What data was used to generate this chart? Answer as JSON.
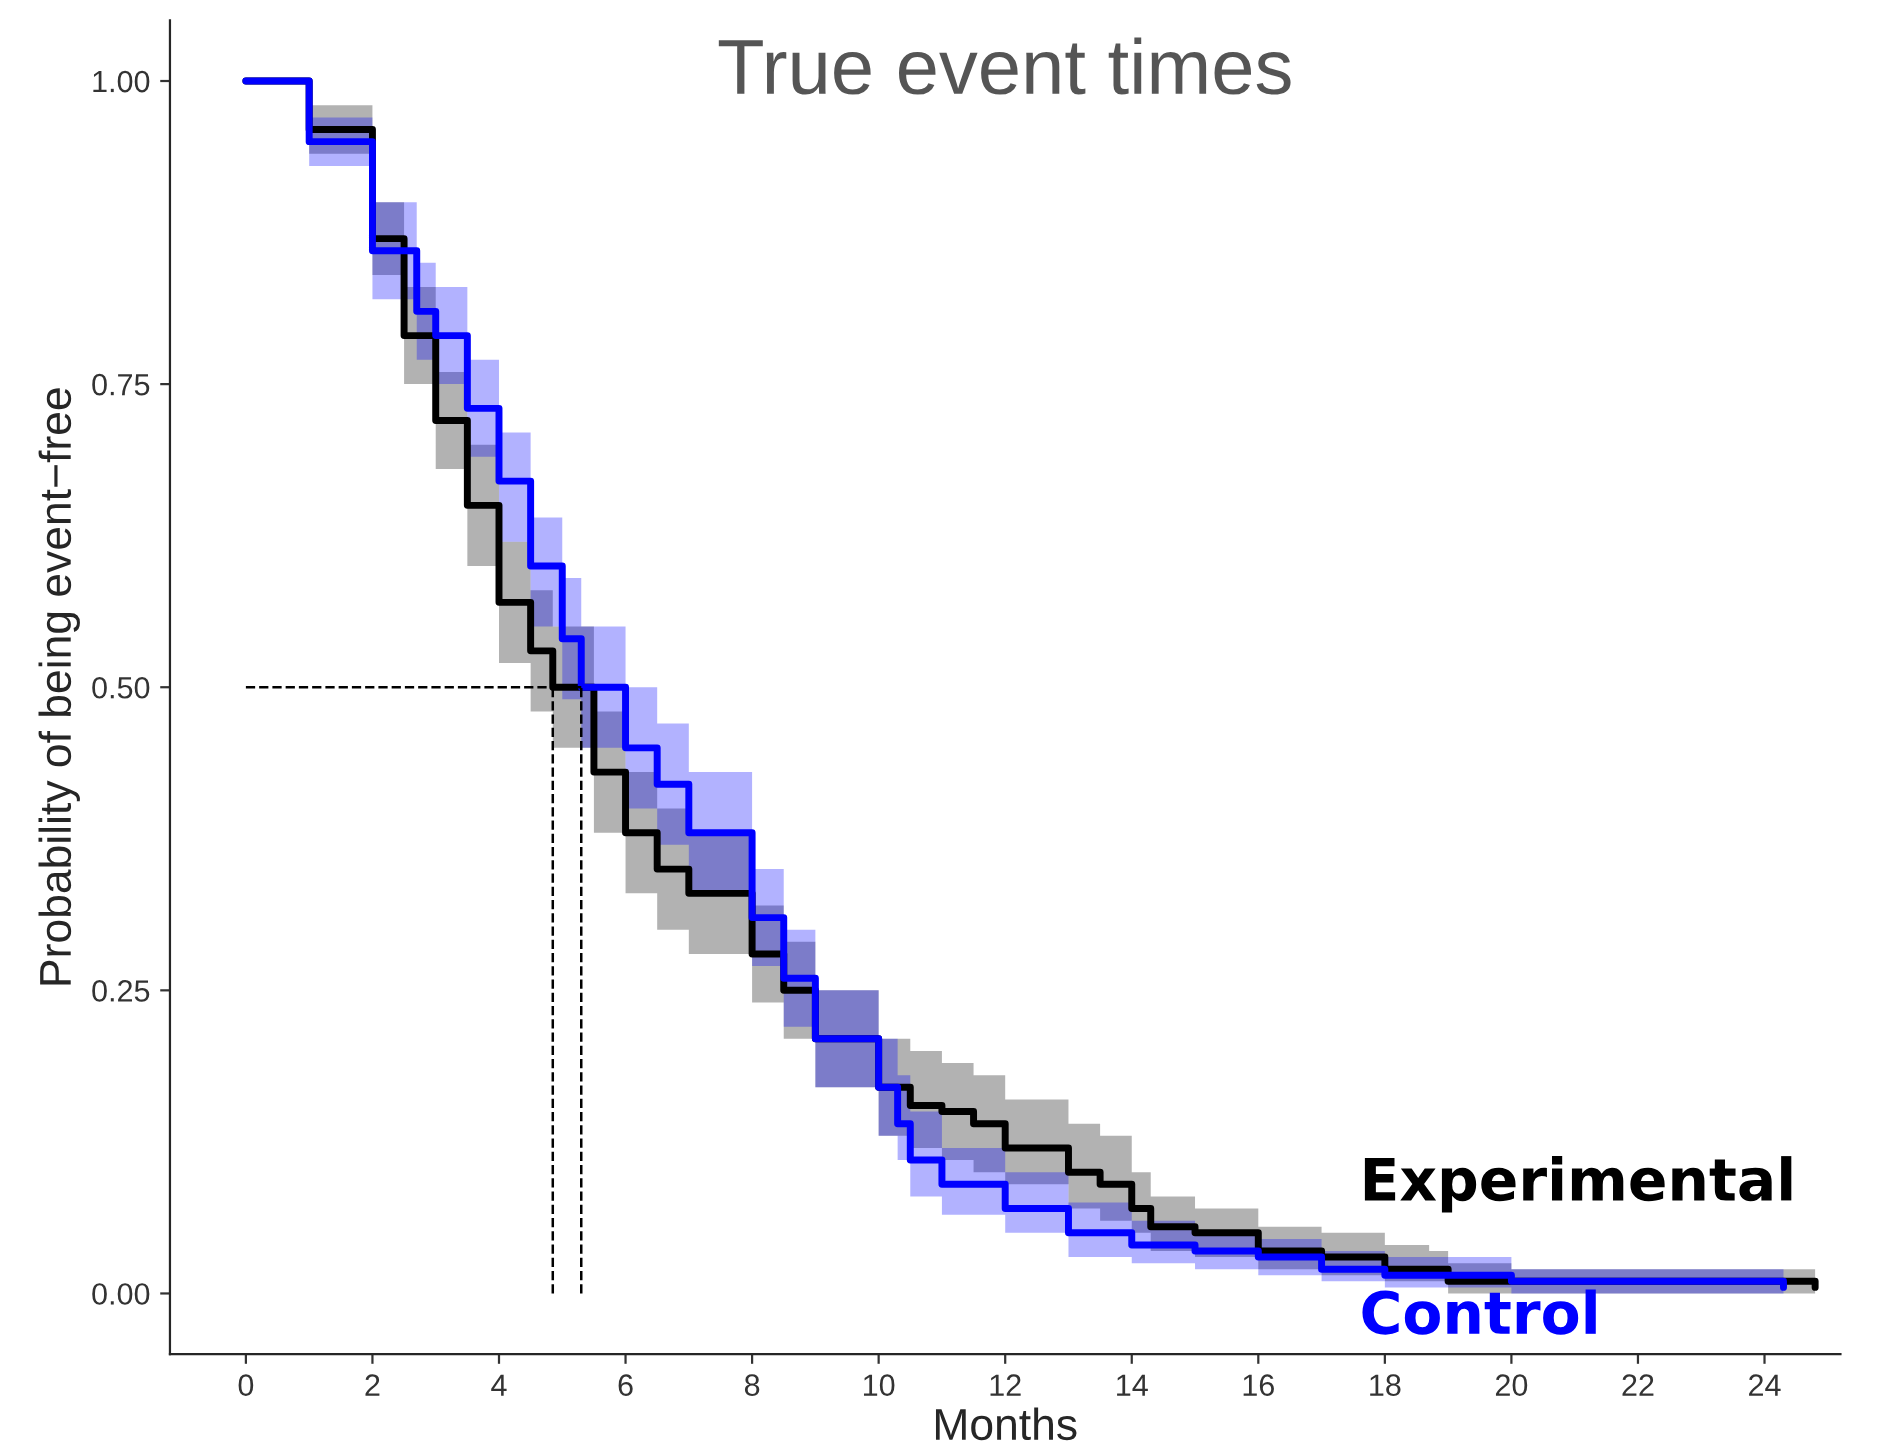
{
  "chart_data": {
    "type": "step",
    "title": "True event times",
    "xlabel": "Months",
    "ylabel": "Probability of being event−free",
    "xlim": [
      -1.2,
      25.2
    ],
    "ylim": [
      -0.05,
      1.05
    ],
    "xticks": [
      0,
      2,
      4,
      6,
      8,
      10,
      12,
      14,
      16,
      18,
      20,
      22,
      24
    ],
    "yticks": [
      {
        "value": 0,
        "label": "0.00"
      },
      {
        "value": 0.25,
        "label": "0.25"
      },
      {
        "value": 0.5,
        "label": "0.50"
      },
      {
        "value": 0.75,
        "label": "0.75"
      },
      {
        "value": 1,
        "label": "1.00"
      }
    ],
    "grid": false,
    "legend": false,
    "series": [
      {
        "name": "Experimental",
        "color": "#000000",
        "x": [
          0,
          1,
          2,
          2.5,
          3,
          3.5,
          4,
          4.5,
          4.85,
          5.5,
          6,
          6.5,
          7,
          8,
          8.5,
          9,
          10,
          10.5,
          11,
          11.5,
          12,
          13,
          13.5,
          14,
          14.3,
          15,
          16,
          17,
          18,
          18.7,
          19,
          20,
          24.8
        ],
        "values": [
          1.0,
          0.96,
          0.87,
          0.79,
          0.72,
          0.65,
          0.57,
          0.53,
          0.5,
          0.43,
          0.38,
          0.35,
          0.33,
          0.28,
          0.25,
          0.21,
          0.17,
          0.155,
          0.15,
          0.14,
          0.12,
          0.1,
          0.09,
          0.07,
          0.055,
          0.05,
          0.035,
          0.03,
          0.02,
          0.02,
          0.01,
          0.01,
          0.005
        ],
        "lower": [
          1.0,
          0.94,
          0.84,
          0.75,
          0.68,
          0.6,
          0.52,
          0.48,
          0.45,
          0.38,
          0.33,
          0.3,
          0.28,
          0.24,
          0.21,
          0.17,
          0.13,
          0.12,
          0.11,
          0.1,
          0.09,
          0.07,
          0.06,
          0.05,
          0.035,
          0.03,
          0.02,
          0.015,
          0.01,
          0.01,
          0.0,
          0.0,
          0.0
        ],
        "upper": [
          1.0,
          0.98,
          0.9,
          0.83,
          0.76,
          0.7,
          0.62,
          0.58,
          0.55,
          0.48,
          0.43,
          0.4,
          0.38,
          0.32,
          0.29,
          0.25,
          0.21,
          0.2,
          0.19,
          0.18,
          0.16,
          0.14,
          0.13,
          0.1,
          0.08,
          0.07,
          0.055,
          0.05,
          0.04,
          0.035,
          0.025,
          0.02,
          0.015
        ]
      },
      {
        "name": "Control",
        "color": "#0000ff",
        "x": [
          0,
          1,
          2,
          2.7,
          3,
          3.5,
          4,
          4.5,
          5,
          5.3,
          6,
          6.5,
          7,
          8,
          8.5,
          9,
          10,
          10.3,
          10.5,
          11,
          12,
          13,
          14,
          15,
          16,
          17,
          18,
          20,
          24.3
        ],
        "values": [
          1.0,
          0.95,
          0.86,
          0.81,
          0.79,
          0.73,
          0.67,
          0.6,
          0.54,
          0.5,
          0.45,
          0.42,
          0.38,
          0.31,
          0.26,
          0.21,
          0.17,
          0.14,
          0.11,
          0.09,
          0.07,
          0.05,
          0.04,
          0.035,
          0.03,
          0.02,
          0.015,
          0.01,
          0.005
        ],
        "lower": [
          1.0,
          0.93,
          0.82,
          0.77,
          0.75,
          0.69,
          0.62,
          0.55,
          0.49,
          0.45,
          0.4,
          0.37,
          0.33,
          0.27,
          0.22,
          0.17,
          0.13,
          0.11,
          0.08,
          0.065,
          0.05,
          0.03,
          0.025,
          0.02,
          0.015,
          0.01,
          0.005,
          0.0,
          0.0
        ],
        "upper": [
          1.0,
          0.97,
          0.9,
          0.85,
          0.83,
          0.77,
          0.71,
          0.64,
          0.59,
          0.55,
          0.5,
          0.47,
          0.43,
          0.35,
          0.3,
          0.25,
          0.21,
          0.18,
          0.15,
          0.12,
          0.1,
          0.075,
          0.06,
          0.05,
          0.045,
          0.035,
          0.03,
          0.02,
          0.015
        ]
      }
    ],
    "ref_lines": [
      {
        "axis": "y",
        "value": 0.5,
        "line_style": "dashed"
      },
      {
        "axis": "x",
        "value": 4.85,
        "line_style": "dashed"
      },
      {
        "axis": "x",
        "value": 5.3,
        "line_style": "dashed"
      }
    ]
  }
}
